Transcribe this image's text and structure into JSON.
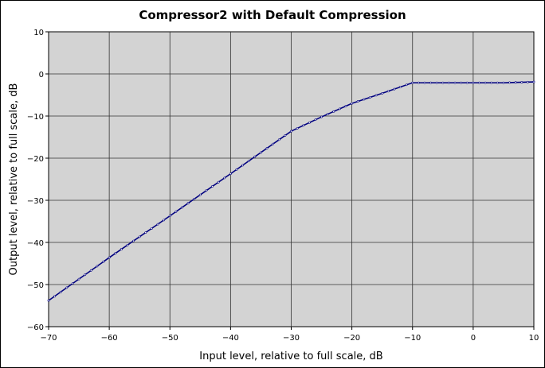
{
  "chart_data": {
    "type": "line",
    "title": "Compressor2 with Default Compression",
    "xlabel": "Input level, relative to full scale, dB",
    "ylabel": "Output level, relative to full scale, dB",
    "xlim": [
      -70,
      10
    ],
    "ylim": [
      -60,
      10
    ],
    "x_ticks": [
      -70,
      -60,
      -50,
      -40,
      -30,
      -20,
      -10,
      0,
      10
    ],
    "y_ticks": [
      10,
      0,
      -10,
      -20,
      -30,
      -40,
      -50,
      -60
    ],
    "x_tick_labels": [
      "−70",
      "−60",
      "−50",
      "−40",
      "−30",
      "−20",
      "−10",
      "0",
      "10"
    ],
    "y_tick_labels": [
      "10",
      "0",
      "−10",
      "−20",
      "−30",
      "−40",
      "−50",
      "−60"
    ],
    "grid": true,
    "legend": "none",
    "plot_background": "#d3d3d3",
    "grid_color": "#333333",
    "series": [
      {
        "color": "#00007f",
        "marker": "dot",
        "x": [
          -70,
          -60,
          -50,
          -40,
          -30,
          -25,
          -20,
          -15,
          -10,
          -5,
          0,
          5,
          10
        ],
        "y": [
          -53.8,
          -43.6,
          -33.7,
          -23.7,
          -13.6,
          -10.2,
          -7.0,
          -4.6,
          -2.1,
          -2.1,
          -2.1,
          -2.1,
          -1.9
        ]
      }
    ]
  }
}
